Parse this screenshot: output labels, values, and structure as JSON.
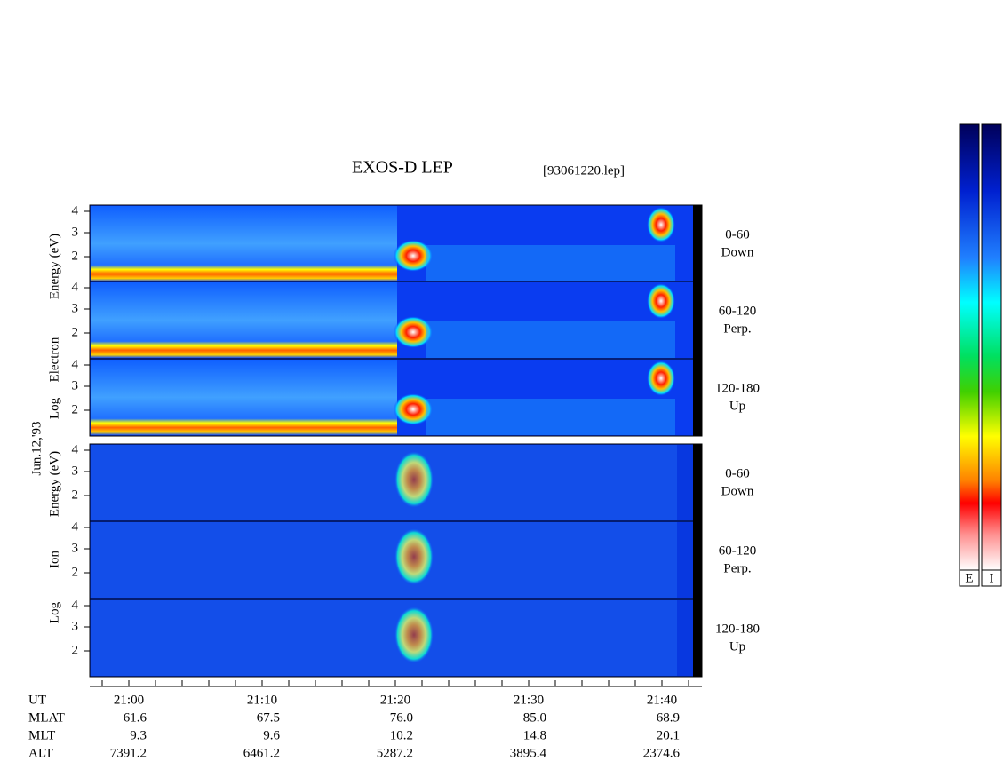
{
  "title": "EXOS-D LEP",
  "file": "[93061220.lep]",
  "date": "Jun.12,'93",
  "electron": {
    "axis_words": [
      "Log",
      "Electron",
      "Energy (eV)"
    ],
    "panels": [
      {
        "ticks": [
          "4",
          "3",
          "2"
        ],
        "label": [
          "0-60",
          "Down"
        ]
      },
      {
        "ticks": [
          "4",
          "3",
          "2"
        ],
        "label": [
          "60-120",
          "Perp."
        ]
      },
      {
        "ticks": [
          "4",
          "3",
          "2"
        ],
        "label": [
          "120-180",
          "Up"
        ]
      }
    ]
  },
  "ion": {
    "axis_words": [
      "Log",
      "Ion",
      "Energy (eV)"
    ],
    "panels": [
      {
        "ticks": [
          "4",
          "3",
          "2"
        ],
        "label": [
          "0-60",
          "Down"
        ]
      },
      {
        "ticks": [
          "4",
          "3",
          "2"
        ],
        "label": [
          "60-120",
          "Perp."
        ]
      },
      {
        "ticks": [
          "4",
          "3",
          "2"
        ],
        "label": [
          "120-180",
          "Up"
        ]
      }
    ]
  },
  "time_ticks": [
    "21:00",
    "21:10",
    "21:20",
    "21:30",
    "21:40"
  ],
  "rows": [
    {
      "name": "UT",
      "values": []
    },
    {
      "name": "MLAT",
      "values": [
        "61.6",
        "67.5",
        "76.0",
        "85.0",
        "68.9"
      ]
    },
    {
      "name": "MLT",
      "values": [
        "9.3",
        "9.6",
        "10.2",
        "14.8",
        "20.1"
      ]
    },
    {
      "name": "ALT",
      "values": [
        "7391.2",
        "6461.2",
        "5287.2",
        "3895.4",
        "2374.6"
      ]
    }
  ],
  "colorbar_labels": [
    "E",
    "I"
  ]
}
